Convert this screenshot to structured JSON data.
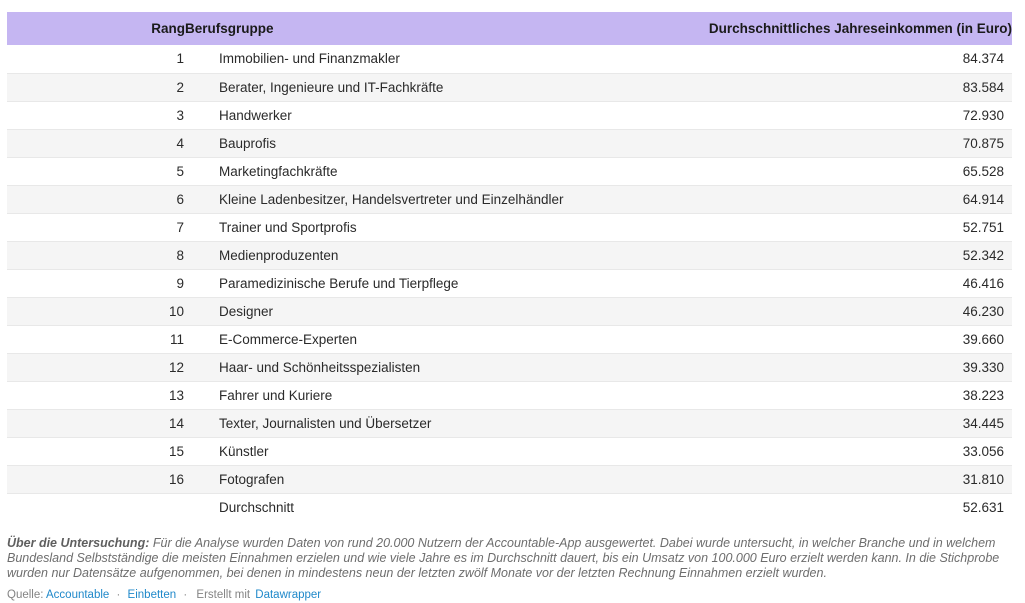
{
  "chart_data": {
    "type": "table",
    "title": "",
    "columns": [
      "Rang",
      "Berufsgruppe",
      "Durchschnittliches Jahreseinkommen (in Euro)"
    ],
    "rows": [
      {
        "rank": "1",
        "group": "Immobilien- und Finanzmakler",
        "income": "84.374",
        "income_numeric": 84374
      },
      {
        "rank": "2",
        "group": "Berater, Ingenieure und IT-Fachkräfte",
        "income": "83.584",
        "income_numeric": 83584
      },
      {
        "rank": "3",
        "group": "Handwerker",
        "income": "72.930",
        "income_numeric": 72930
      },
      {
        "rank": "4",
        "group": "Bauprofis",
        "income": "70.875",
        "income_numeric": 70875
      },
      {
        "rank": "5",
        "group": "Marketingfachkräfte",
        "income": "65.528",
        "income_numeric": 65528
      },
      {
        "rank": "6",
        "group": "Kleine Ladenbesitzer, Handelsvertreter und Einzelhändler",
        "income": "64.914",
        "income_numeric": 64914
      },
      {
        "rank": "7",
        "group": "Trainer und Sportprofis",
        "income": "52.751",
        "income_numeric": 52751
      },
      {
        "rank": "8",
        "group": "Medienproduzenten",
        "income": "52.342",
        "income_numeric": 52342
      },
      {
        "rank": "9",
        "group": "Paramedizinische Berufe und Tierpflege",
        "income": "46.416",
        "income_numeric": 46416
      },
      {
        "rank": "10",
        "group": "Designer",
        "income": "46.230",
        "income_numeric": 46230
      },
      {
        "rank": "11",
        "group": "E-Commerce-Experten",
        "income": "39.660",
        "income_numeric": 39660
      },
      {
        "rank": "12",
        "group": "Haar- und Schönheitsspezialisten",
        "income": "39.330",
        "income_numeric": 39330
      },
      {
        "rank": "13",
        "group": "Fahrer und Kuriere",
        "income": "38.223",
        "income_numeric": 38223
      },
      {
        "rank": "14",
        "group": "Texter, Journalisten und Übersetzer",
        "income": "34.445",
        "income_numeric": 34445
      },
      {
        "rank": "15",
        "group": "Künstler",
        "income": "33.056",
        "income_numeric": 33056
      },
      {
        "rank": "16",
        "group": "Fotografen",
        "income": "31.810",
        "income_numeric": 31810
      },
      {
        "rank": "",
        "group": "Durchschnitt",
        "income": "52.631",
        "income_numeric": 52631
      }
    ]
  },
  "footer": {
    "about_label": "Über die Untersuchung:",
    "about_text": "Für die Analyse wurden Daten von rund 20.000 Nutzern der Accountable-App ausgewertet. Dabei wurde untersucht, in welcher Branche und in welchem Bundesland Selbstständige die meisten Einnahmen erzielen und wie viele Jahre es im Durchschnitt dauert, bis ein Umsatz von 100.000 Euro erzielt werden kann. In die Stichprobe wurden nur Datensätze aufgenommen, bei denen in mindestens neun der letzten zwölf Monate vor der letzten Rechnung Einnahmen erzielt wurden.",
    "source_label": "Quelle:",
    "source_link": "Accountable",
    "separator": "·",
    "embed_link": "Einbetten",
    "credit_text": "Erstellt mit",
    "credit_link": "Datawrapper"
  },
  "colors": {
    "header_bg": "#c5b6f2",
    "row_stripe": "#f5f5f5",
    "row_border": "#e8e8e8",
    "link_blue": "#2089ca",
    "cell_text": "#2a2a2a",
    "note_gray": "#6d6d6d"
  }
}
